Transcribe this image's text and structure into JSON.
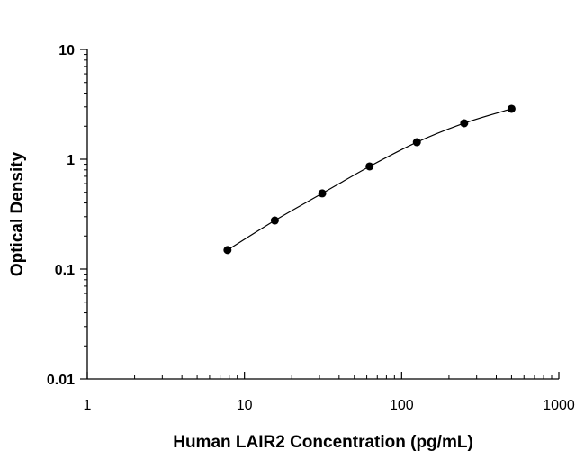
{
  "chart_data": {
    "type": "scatter",
    "title": "",
    "xlabel": "Human LAIR2 Concentration (pg/mL)",
    "ylabel": "Optical Density",
    "xscale": "log",
    "yscale": "log",
    "xlim": [
      1,
      1000
    ],
    "ylim": [
      0.01,
      10
    ],
    "x_ticks": [
      "1",
      "10",
      "100",
      "1000"
    ],
    "y_ticks": [
      "0.01",
      "0.1",
      "1",
      "10"
    ],
    "grid": false,
    "fit_line": true,
    "point_color": "#000000",
    "series": [
      {
        "x": [
          7.8,
          15.6,
          31.25,
          62.5,
          125,
          250,
          500
        ],
        "y": [
          0.149,
          0.277,
          0.489,
          0.86,
          1.43,
          2.13,
          2.88
        ]
      }
    ]
  }
}
